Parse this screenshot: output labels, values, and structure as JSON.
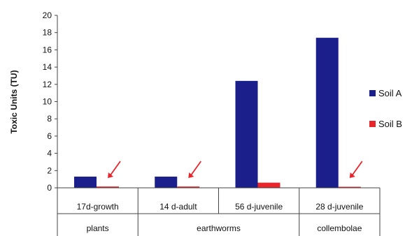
{
  "chart_data": {
    "type": "bar",
    "title": "",
    "xlabel": "",
    "ylabel": "Toxic Units (TU)",
    "ylim": [
      0,
      20
    ],
    "yticks": [
      "0",
      "2",
      "4",
      "6",
      "8",
      "10",
      "12",
      "14",
      "16",
      "18",
      "20"
    ],
    "categories": [
      "17d-growth",
      "14 d-adult",
      "56 d-juvenile",
      "28 d-juvenile"
    ],
    "groups": [
      {
        "label": "plants",
        "categories": [
          0
        ]
      },
      {
        "label": "earthworms",
        "categories": [
          1,
          2
        ]
      },
      {
        "label": "collembolae",
        "categories": [
          3
        ]
      }
    ],
    "series": [
      {
        "name": "Soil A",
        "color": "#1a1f8c",
        "values": [
          1.3,
          1.3,
          12.4,
          17.4
        ]
      },
      {
        "name": "Soil B",
        "color": "#e8252b",
        "values": [
          0.15,
          0.15,
          0.6,
          0.1
        ]
      }
    ],
    "annotations": {
      "arrow_color": "#e8252b",
      "arrows_on_categories": [
        0,
        1,
        3
      ]
    },
    "legend_placement": "right",
    "grid": false
  }
}
